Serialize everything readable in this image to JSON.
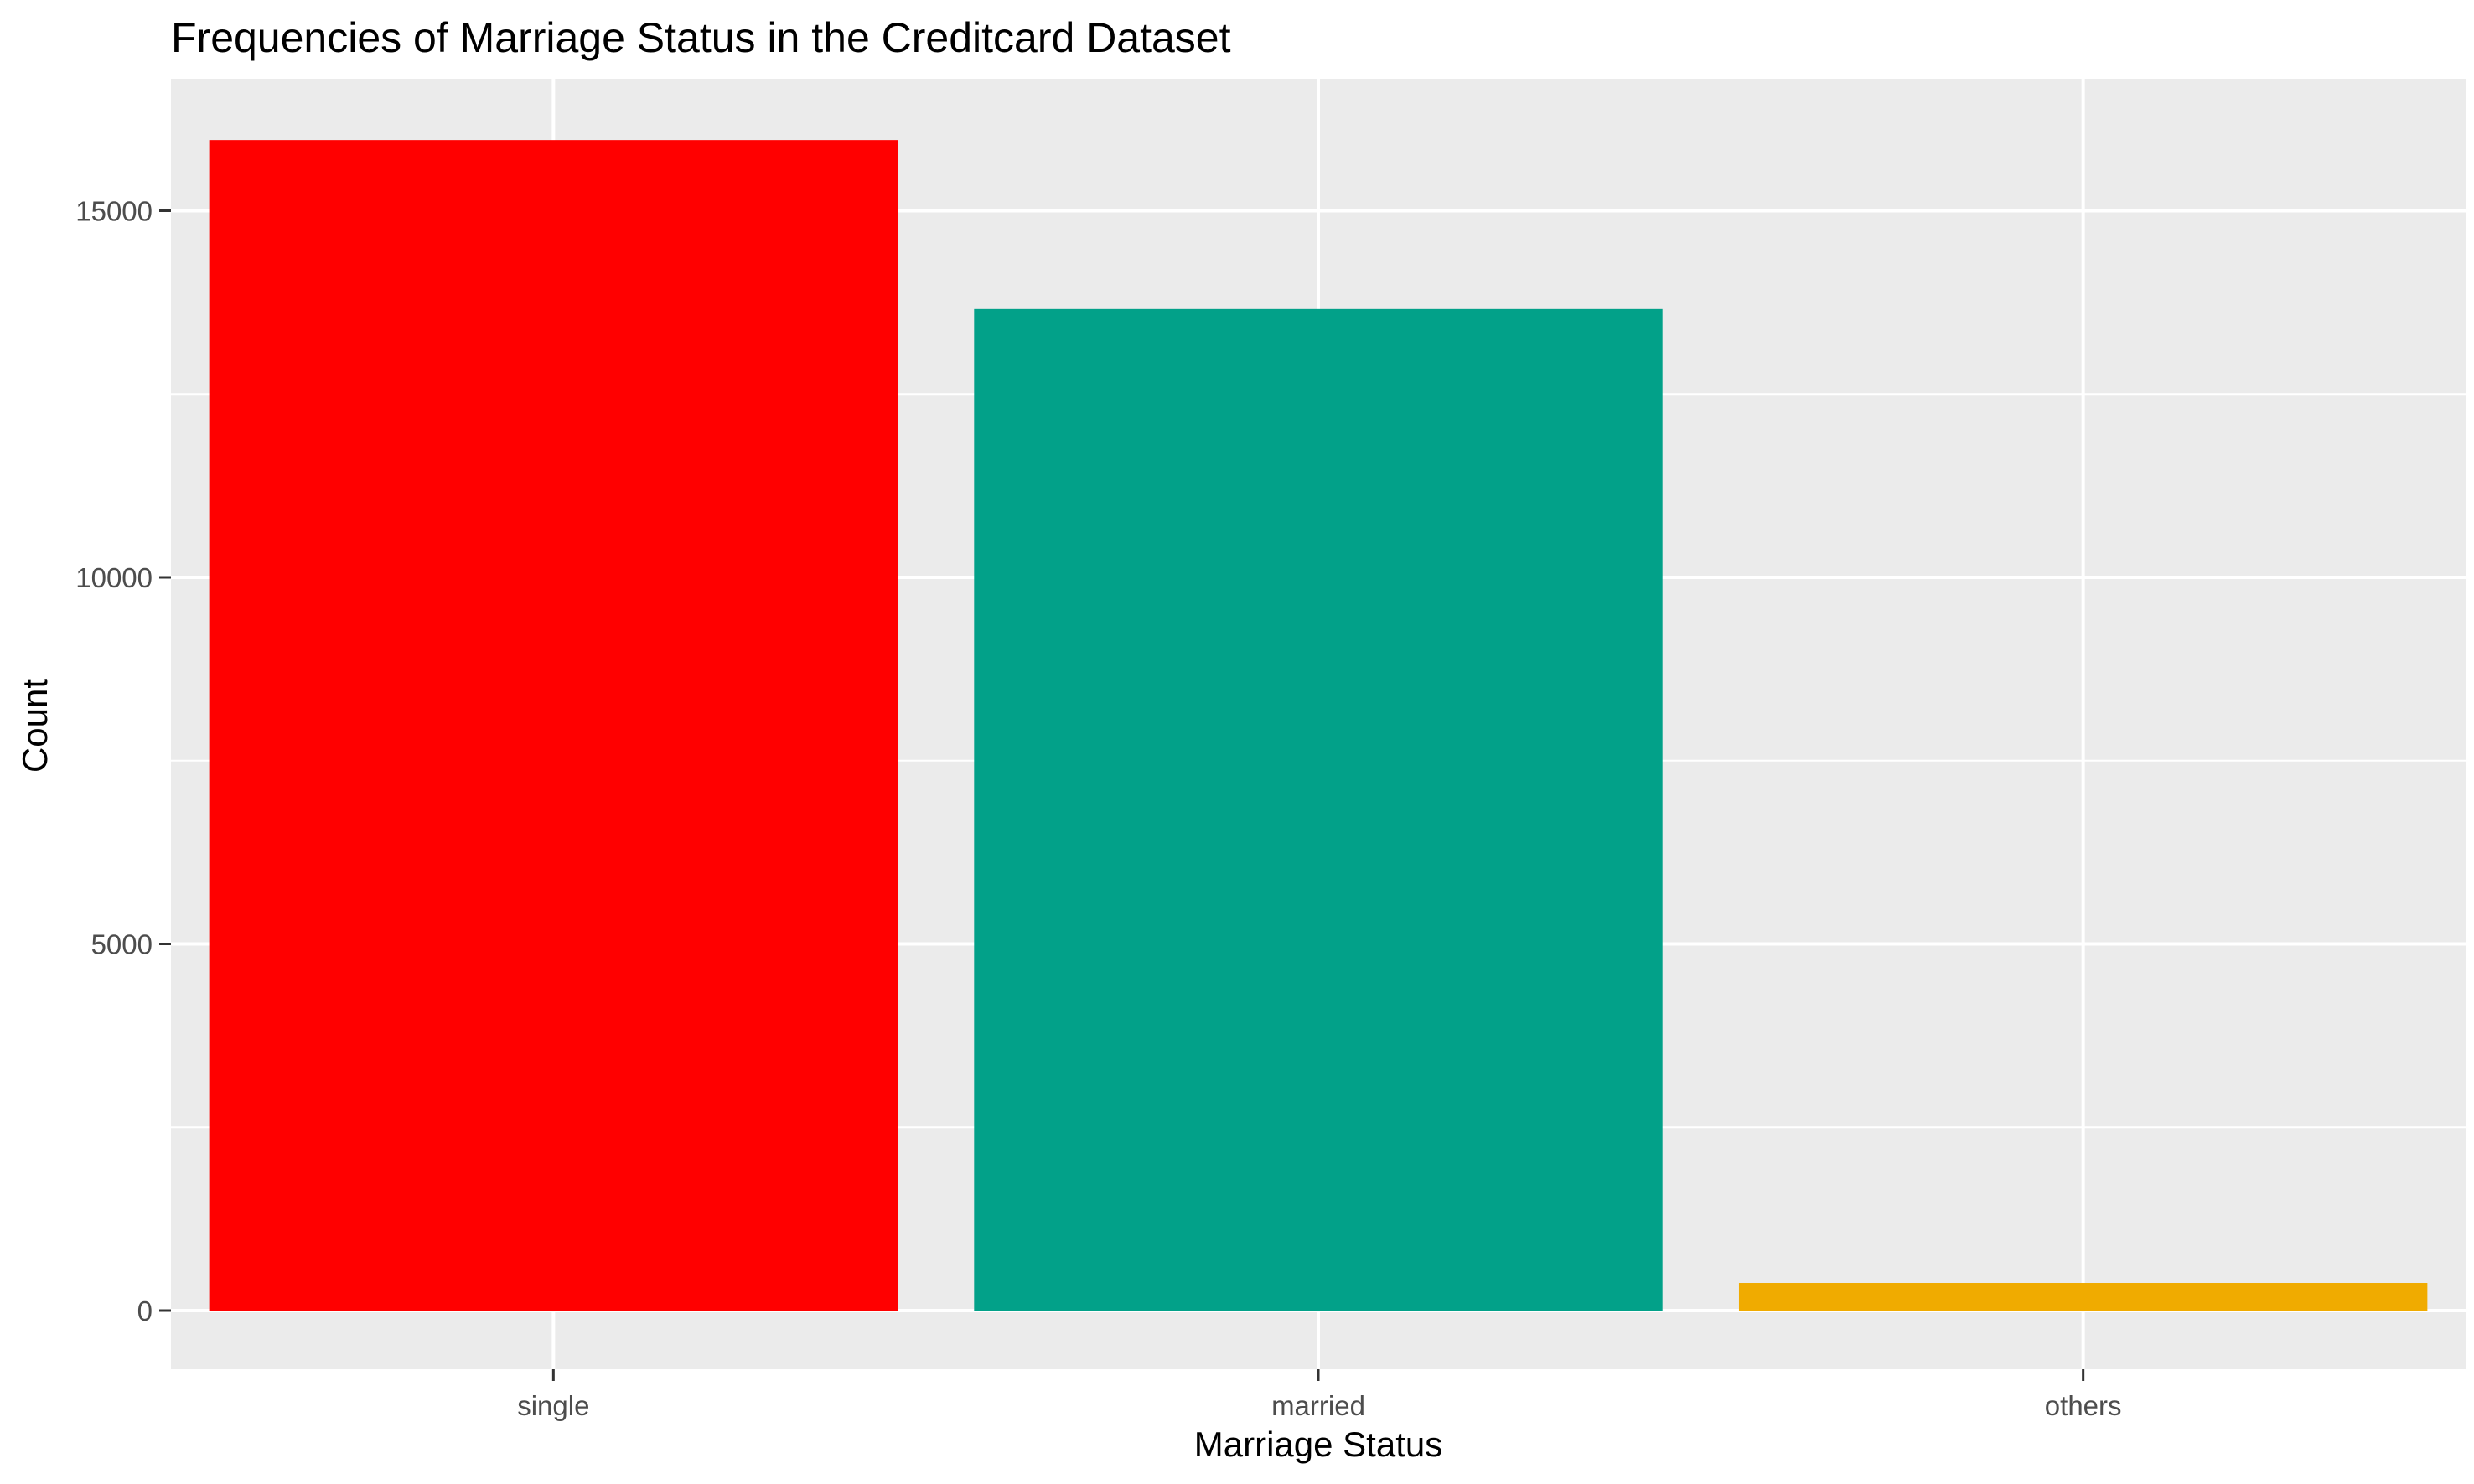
{
  "chart_data": {
    "type": "bar",
    "title": "Frequencies of Marriage Status in the Creditcard Dataset",
    "xlabel": "Marriage Status",
    "ylabel": "Count",
    "categories": [
      "single",
      "married",
      "others"
    ],
    "values": [
      15964,
      13659,
      377
    ],
    "colors": [
      "#FF0000",
      "#02A189",
      "#F0AB00"
    ],
    "ylim": [
      -800,
      16800
    ],
    "yticks": [
      0,
      5000,
      10000,
      15000
    ],
    "ytick_labels": [
      "0",
      "5000",
      "10000",
      "15000"
    ],
    "grid": true,
    "panel_background": "#EBEBEB",
    "gridline_color": "#FFFFFF",
    "legend": "none"
  }
}
